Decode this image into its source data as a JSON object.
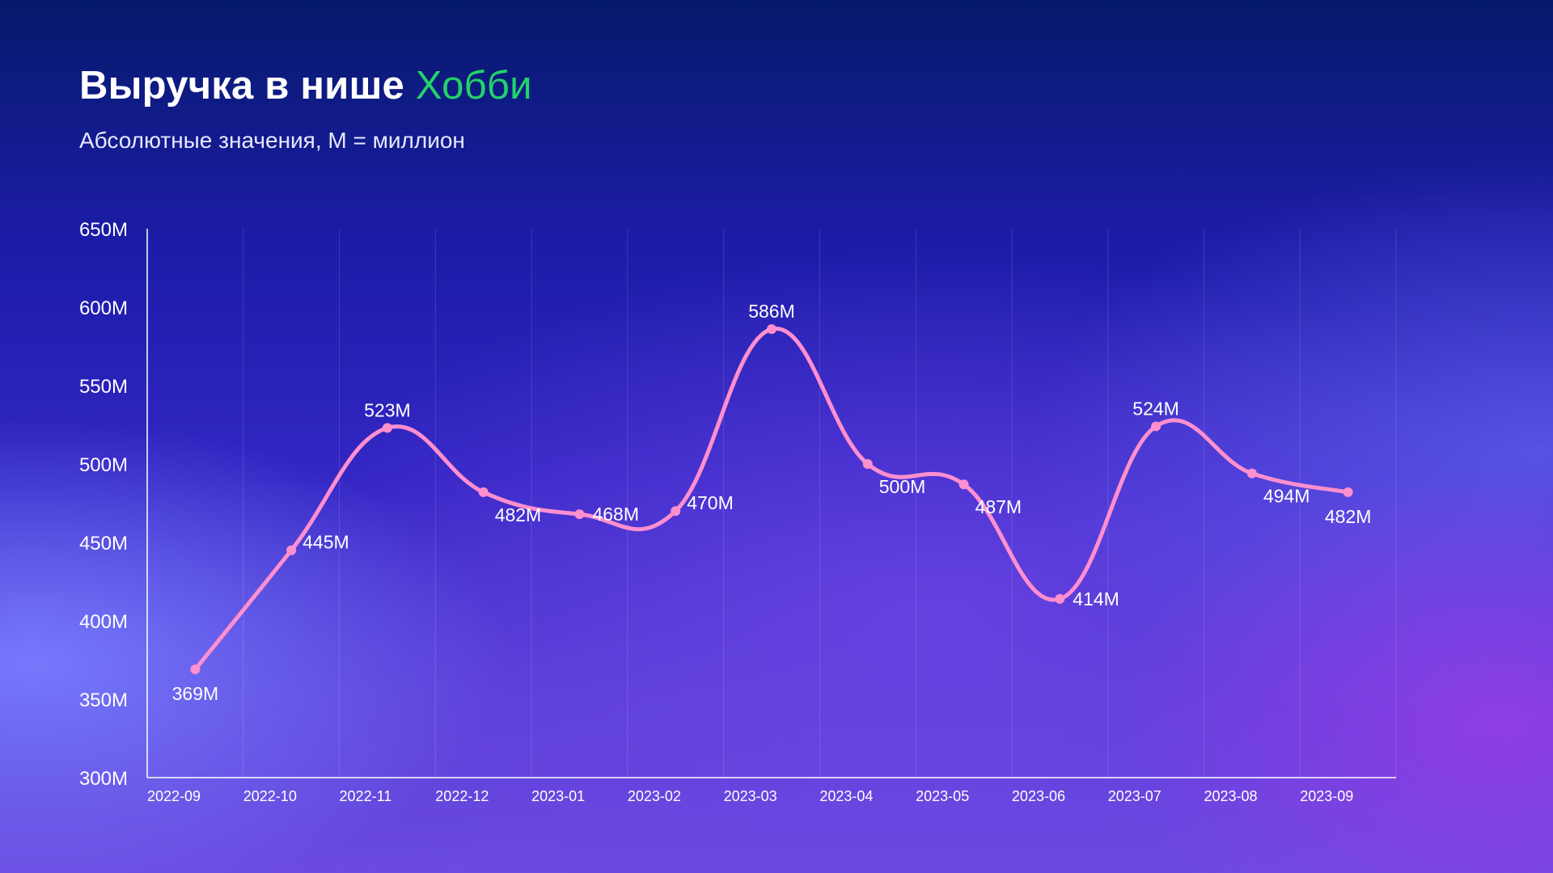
{
  "header": {
    "title_main": "Выручка в нише",
    "title_accent": "Хобби",
    "subtitle": "Абсолютные значения, M = миллион"
  },
  "colors": {
    "line": "#ff8fce",
    "accent": "#22d36a",
    "axis": "#ffffff"
  },
  "chart_data": {
    "type": "line",
    "title": "Выручка в нише Хобби",
    "subtitle": "Абсолютные значения, M = миллион",
    "categories": [
      "2022-09",
      "2022-10",
      "2022-11",
      "2022-12",
      "2023-01",
      "2023-02",
      "2023-03",
      "2023-04",
      "2023-05",
      "2023-06",
      "2023-07",
      "2023-08",
      "2023-09"
    ],
    "series": [
      {
        "values": [
          369,
          445,
          523,
          482,
          468,
          470,
          586,
          500,
          487,
          414,
          524,
          494,
          482
        ],
        "labels": [
          "369M",
          "445M",
          "523M",
          "482M",
          "468M",
          "470M",
          "586M",
          "500M",
          "487M",
          "414M",
          "524M",
          "494M",
          "482M"
        ]
      }
    ],
    "y_ticks": [
      "300M",
      "350M",
      "400M",
      "450M",
      "500M",
      "550M",
      "600M",
      "650M"
    ],
    "ylim": [
      300,
      650
    ],
    "smooth": true,
    "grid": "vertical"
  }
}
